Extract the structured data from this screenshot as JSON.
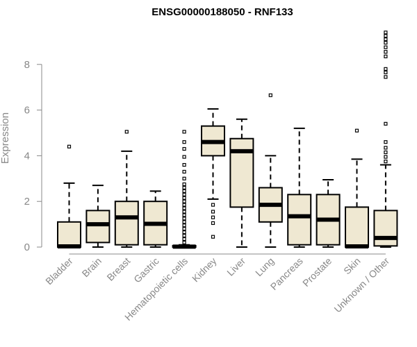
{
  "chart_data": {
    "type": "boxplot",
    "title": "ENSG00000188050 - RNF133",
    "xlabel": "",
    "ylabel": "Expression",
    "ylim": [
      0,
      9.5
    ],
    "yticks": [
      0,
      2,
      4,
      6,
      8
    ],
    "grid": false,
    "box_fill": "#EFE8D2",
    "categories": [
      "Bladder",
      "Brain",
      "Breast",
      "Gastric",
      "Hematopoietic cells",
      "Kidney",
      "Liver",
      "Lung",
      "Pancreas",
      "Prostate",
      "Skin",
      "Unknown / Other"
    ],
    "boxes": [
      {
        "whisker_low": 0,
        "q1": 0,
        "median": 0.03,
        "q3": 1.1,
        "whisker_high": 2.8,
        "outliers": [
          4.4
        ]
      },
      {
        "whisker_low": 0,
        "q1": 0.2,
        "median": 1.0,
        "q3": 1.6,
        "whisker_high": 2.7,
        "outliers": []
      },
      {
        "whisker_low": 0,
        "q1": 0.1,
        "median": 1.3,
        "q3": 2.0,
        "whisker_high": 4.2,
        "outliers": [
          5.05
        ]
      },
      {
        "whisker_low": 0,
        "q1": 0.1,
        "median": 1.02,
        "q3": 2.0,
        "whisker_high": 2.45,
        "outliers": []
      },
      {
        "whisker_low": 0,
        "q1": 0,
        "median": 0.02,
        "q3": 0.06,
        "whisker_high": 0.1,
        "outliers": [
          0.2,
          0.35,
          0.5,
          0.65,
          0.8,
          0.95,
          1.1,
          1.25,
          1.4,
          1.55,
          1.7,
          1.85,
          2.0,
          2.15,
          2.3,
          2.45,
          2.6,
          2.75,
          3.0,
          3.3,
          3.6,
          3.95,
          4.3,
          4.6,
          5.05
        ]
      },
      {
        "whisker_low": 2.1,
        "q1": 4.0,
        "median": 4.6,
        "q3": 5.3,
        "whisker_high": 6.05,
        "outliers": [
          0.45,
          1.05,
          1.3,
          1.55,
          1.85
        ]
      },
      {
        "whisker_low": 0,
        "q1": 1.75,
        "median": 4.2,
        "q3": 4.75,
        "whisker_high": 5.6,
        "outliers": []
      },
      {
        "whisker_low": 0,
        "q1": 1.1,
        "median": 1.85,
        "q3": 2.6,
        "whisker_high": 4.0,
        "outliers": [
          6.65
        ]
      },
      {
        "whisker_low": 0,
        "q1": 0.1,
        "median": 1.35,
        "q3": 2.3,
        "whisker_high": 5.2,
        "outliers": []
      },
      {
        "whisker_low": 0,
        "q1": 0.1,
        "median": 1.2,
        "q3": 2.3,
        "whisker_high": 2.95,
        "outliers": []
      },
      {
        "whisker_low": 0,
        "q1": 0,
        "median": 0.03,
        "q3": 1.75,
        "whisker_high": 3.85,
        "outliers": [
          5.1
        ]
      },
      {
        "whisker_low": 0,
        "q1": 0.05,
        "median": 0.4,
        "q3": 1.6,
        "whisker_high": 3.6,
        "outliers": [
          3.75,
          3.95,
          4.15,
          4.35,
          4.6,
          5.4,
          7.45,
          7.65,
          7.8,
          8.35,
          8.55,
          8.75,
          8.95,
          9.1,
          9.25,
          9.4
        ]
      }
    ]
  }
}
